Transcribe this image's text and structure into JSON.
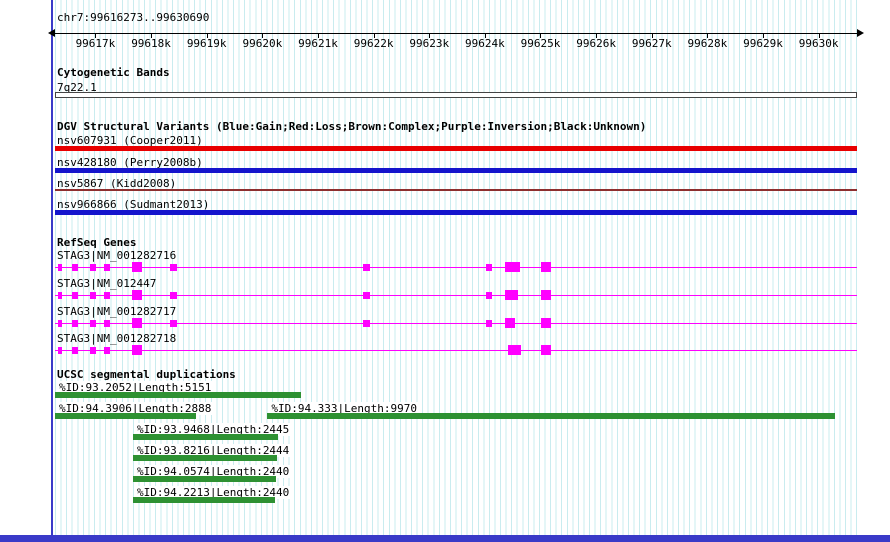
{
  "colors": {
    "grid": "#c9ecef",
    "frame_blue": "#3a3ac8",
    "ruler_black": "#000000",
    "cytoband_border": "#444444",
    "label_text": "#000000"
  },
  "chart_data": {
    "type": "genome_tracks",
    "region": {
      "chrom": "chr7",
      "start": 99616273,
      "end": 99630690,
      "label": "chr7:99616273..99630690"
    },
    "ruler_ticks": [
      {
        "label": "99617k",
        "pos": 99617000
      },
      {
        "label": "99618k",
        "pos": 99618000
      },
      {
        "label": "99619k",
        "pos": 99619000
      },
      {
        "label": "99620k",
        "pos": 99620000
      },
      {
        "label": "99621k",
        "pos": 99621000
      },
      {
        "label": "99622k",
        "pos": 99622000
      },
      {
        "label": "99623k",
        "pos": 99623000
      },
      {
        "label": "99624k",
        "pos": 99624000
      },
      {
        "label": "99625k",
        "pos": 99625000
      },
      {
        "label": "99626k",
        "pos": 99626000
      },
      {
        "label": "99627k",
        "pos": 99627000
      },
      {
        "label": "99628k",
        "pos": 99628000
      },
      {
        "label": "99629k",
        "pos": 99629000
      },
      {
        "label": "99630k",
        "pos": 99630000
      }
    ],
    "cytobands": {
      "title": "Cytogenetic Bands",
      "bands": [
        {
          "name": "7q22.1",
          "start": 99616273,
          "end": 99630690
        }
      ]
    },
    "dgv": {
      "title": "DGV Structural Variants (Blue:Gain;Red:Loss;Brown:Complex;Purple:Inversion;Black:Unknown)",
      "variants": [
        {
          "label": "nsv607931 (Cooper2011)",
          "type": "loss",
          "color": "#e80000",
          "start": 99616273,
          "end": 99630690,
          "thickness": 5
        },
        {
          "label": "nsv428180 (Perry2008b)",
          "type": "gain",
          "color": "#1414cc",
          "start": 99616273,
          "end": 99630690,
          "thickness": 5
        },
        {
          "label": "nsv5867 (Kidd2008)",
          "type": "complex",
          "color": "#8d2f2f",
          "start": 99616273,
          "end": 99630690,
          "thickness": 2
        },
        {
          "label": "nsv966866 (Sudmant2013)",
          "type": "gain",
          "color": "#1414cc",
          "start": 99616273,
          "end": 99630690,
          "thickness": 5
        }
      ]
    },
    "refseq": {
      "title": "RefSeq Genes",
      "color": "#ff00ff",
      "genes": [
        {
          "label": "STAG3|NM_001282716",
          "start": 99616273,
          "end": 99630690,
          "exons": [
            {
              "s": 99616325,
              "e": 99616400,
              "h": 7
            },
            {
              "s": 99616580,
              "e": 99616685,
              "h": 7
            },
            {
              "s": 99616900,
              "e": 99617010,
              "h": 7
            },
            {
              "s": 99617155,
              "e": 99617260,
              "h": 7
            },
            {
              "s": 99617655,
              "e": 99617835,
              "h": 10
            },
            {
              "s": 99618340,
              "e": 99618465,
              "h": 7
            },
            {
              "s": 99621810,
              "e": 99621935,
              "h": 7
            },
            {
              "s": 99624020,
              "e": 99624130,
              "h": 7
            },
            {
              "s": 99624365,
              "e": 99624630,
              "h": 10
            },
            {
              "s": 99625010,
              "e": 99625190,
              "h": 10
            }
          ]
        },
        {
          "label": "STAG3|NM_012447",
          "start": 99616273,
          "end": 99630690,
          "exons": [
            {
              "s": 99616325,
              "e": 99616400,
              "h": 7
            },
            {
              "s": 99616580,
              "e": 99616685,
              "h": 7
            },
            {
              "s": 99616900,
              "e": 99617010,
              "h": 7
            },
            {
              "s": 99617155,
              "e": 99617260,
              "h": 7
            },
            {
              "s": 99617655,
              "e": 99617835,
              "h": 10
            },
            {
              "s": 99618340,
              "e": 99618465,
              "h": 7
            },
            {
              "s": 99621810,
              "e": 99621935,
              "h": 7
            },
            {
              "s": 99624020,
              "e": 99624130,
              "h": 7
            },
            {
              "s": 99624365,
              "e": 99624600,
              "h": 10
            },
            {
              "s": 99625010,
              "e": 99625190,
              "h": 10
            }
          ]
        },
        {
          "label": "STAG3|NM_001282717",
          "start": 99616273,
          "end": 99630690,
          "exons": [
            {
              "s": 99616325,
              "e": 99616400,
              "h": 7
            },
            {
              "s": 99616580,
              "e": 99616685,
              "h": 7
            },
            {
              "s": 99616900,
              "e": 99617010,
              "h": 7
            },
            {
              "s": 99617155,
              "e": 99617260,
              "h": 7
            },
            {
              "s": 99617655,
              "e": 99617835,
              "h": 10
            },
            {
              "s": 99618340,
              "e": 99618465,
              "h": 7
            },
            {
              "s": 99621810,
              "e": 99621935,
              "h": 7
            },
            {
              "s": 99624020,
              "e": 99624130,
              "h": 7
            },
            {
              "s": 99624365,
              "e": 99624540,
              "h": 10
            },
            {
              "s": 99625010,
              "e": 99625190,
              "h": 10
            }
          ]
        },
        {
          "label": "STAG3|NM_001282718",
          "start": 99616273,
          "end": 99630690,
          "exons": [
            {
              "s": 99616325,
              "e": 99616400,
              "h": 7
            },
            {
              "s": 99616580,
              "e": 99616685,
              "h": 7
            },
            {
              "s": 99616900,
              "e": 99617010,
              "h": 7
            },
            {
              "s": 99617155,
              "e": 99617260,
              "h": 7
            },
            {
              "s": 99617655,
              "e": 99617835,
              "h": 10
            },
            {
              "s": 99624420,
              "e": 99624650,
              "h": 10
            },
            {
              "s": 99625010,
              "e": 99625190,
              "h": 10
            }
          ]
        }
      ]
    },
    "segdups": {
      "title": "UCSC segmental duplications",
      "color": "#2e9132",
      "rows": [
        [
          {
            "label": "%ID:93.2052|Length:5151",
            "start": 99616273,
            "end": 99620700
          }
        ],
        [
          {
            "label": "%ID:94.3906|Length:2888",
            "start": 99616273,
            "end": 99618810
          },
          {
            "label": "%ID:94.333|Length:9970",
            "start": 99620090,
            "end": 99630290
          }
        ],
        [
          {
            "label": "%ID:93.9468|Length:2445",
            "start": 99617675,
            "end": 99620285
          }
        ],
        [
          {
            "label": "%ID:93.8216|Length:2444",
            "start": 99617675,
            "end": 99620268
          }
        ],
        [
          {
            "label": "%ID:94.0574|Length:2440",
            "start": 99617675,
            "end": 99620250
          }
        ],
        [
          {
            "label": "%ID:94.2213|Length:2440",
            "start": 99617675,
            "end": 99620233
          }
        ]
      ]
    }
  }
}
